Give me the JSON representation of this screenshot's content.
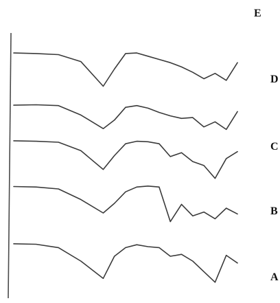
{
  "chart_data": {
    "type": "line",
    "title": "",
    "xlabel": "",
    "ylabel": "",
    "x": [
      0,
      10,
      20,
      30,
      40,
      45,
      50,
      55,
      60,
      65,
      70,
      75,
      80,
      85,
      90,
      95,
      100
    ],
    "series": [
      {
        "name": "E",
        "color": "#3a3a3a",
        "values": [
          0.04,
          0.05,
          0.07,
          0.2,
          0.66,
          0.34,
          0.05,
          0.04,
          0.1,
          0.16,
          0.22,
          0.3,
          0.4,
          0.52,
          0.42,
          0.55,
          0.22
        ]
      },
      {
        "name": "D",
        "color": "#3a3a3a",
        "values": [
          0.05,
          0.04,
          0.06,
          0.28,
          0.6,
          0.4,
          0.1,
          0.06,
          0.12,
          0.22,
          0.3,
          0.36,
          0.34,
          0.56,
          0.44,
          0.62,
          0.2
        ]
      },
      {
        "name": "C",
        "color": "#3a3a3a",
        "values": [
          0.04,
          0.05,
          0.07,
          0.24,
          0.62,
          0.34,
          0.1,
          0.05,
          0.06,
          0.1,
          0.36,
          0.28,
          0.46,
          0.54,
          0.8,
          0.4,
          0.26
        ]
      },
      {
        "name": "B",
        "color": "#3a3a3a",
        "values": [
          0.05,
          0.06,
          0.1,
          0.32,
          0.6,
          0.4,
          0.16,
          0.06,
          0.04,
          0.06,
          0.78,
          0.42,
          0.66,
          0.58,
          0.72,
          0.5,
          0.62
        ]
      },
      {
        "name": "A",
        "color": "#3a3a3a",
        "values": [
          0.04,
          0.05,
          0.12,
          0.4,
          0.76,
          0.3,
          0.12,
          0.06,
          0.1,
          0.12,
          0.3,
          0.26,
          0.4,
          0.62,
          0.84,
          0.28,
          0.44
        ]
      }
    ],
    "legend_position": "right"
  }
}
